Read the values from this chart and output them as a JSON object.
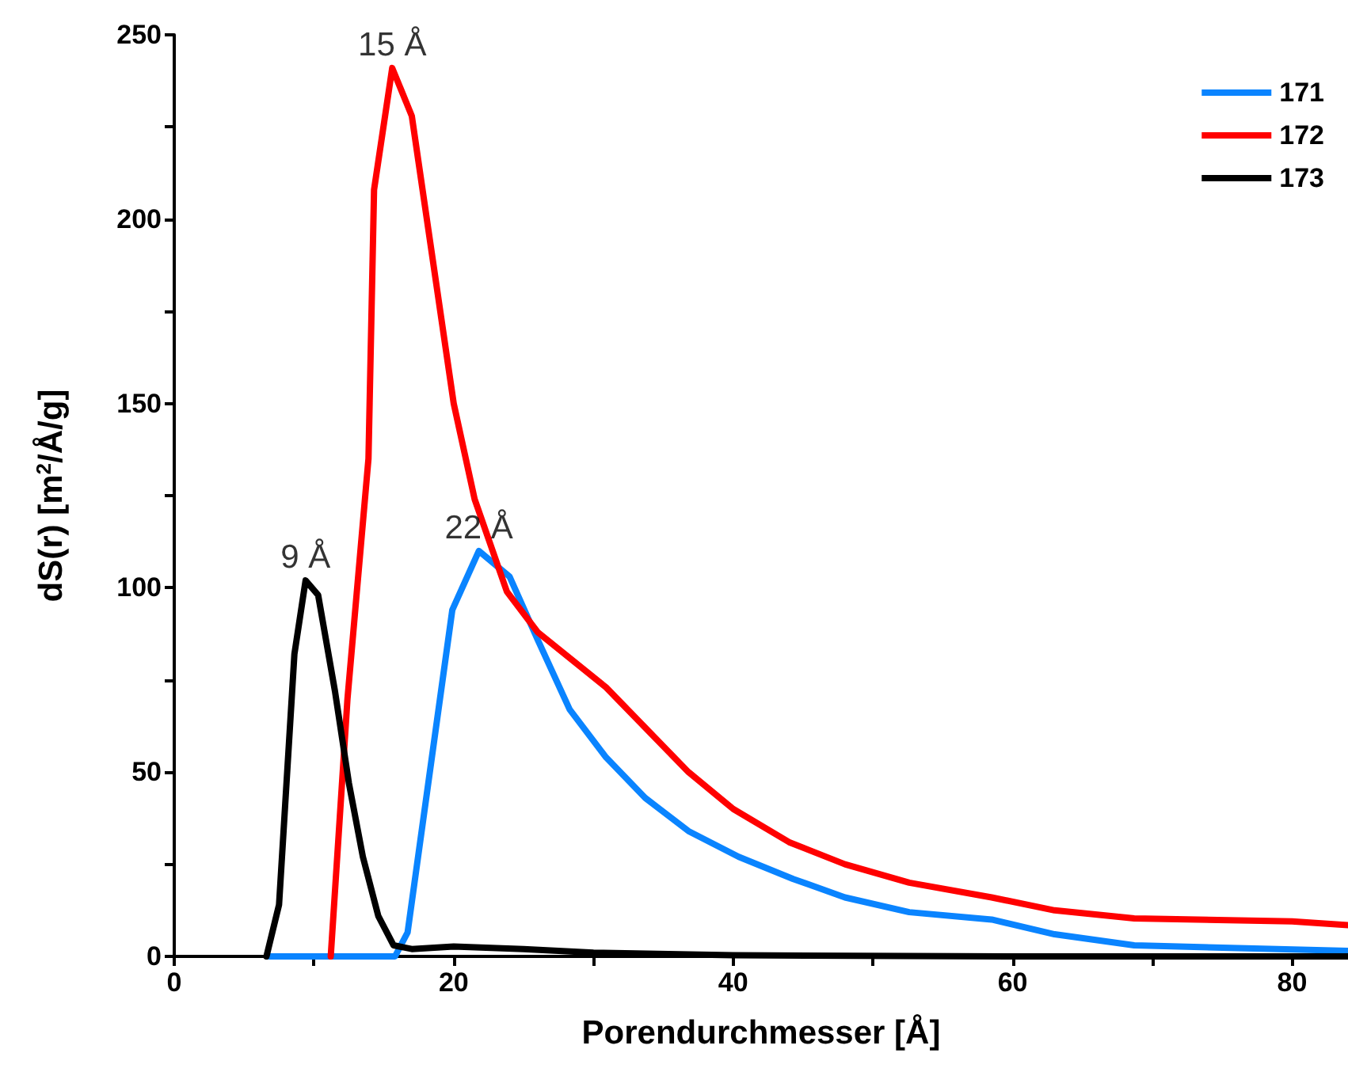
{
  "chart_data": {
    "type": "line",
    "xlabel": "Porendurchmesser [Å]",
    "ylabel": "dS(r) [m$^{2}$/Å/g]",
    "xlim": [
      0,
      84
    ],
    "xticks": [
      0,
      {
        "value": 10,
        "label": null
      },
      20,
      {
        "value": 30,
        "label": null
      },
      40,
      {
        "value": 50,
        "label": null
      },
      60,
      {
        "value": 70,
        "label": null
      },
      80
    ],
    "ylim": [
      0,
      250
    ],
    "yticks": [
      0,
      {
        "value": 25,
        "label": null
      },
      50,
      {
        "value": 75,
        "label": null
      },
      100,
      {
        "value": 125,
        "label": null
      },
      150,
      {
        "value": 175,
        "label": null
      },
      200,
      {
        "value": 225,
        "label": null
      },
      250
    ],
    "grid": false,
    "legend": "top right",
    "marker": "none",
    "line_style": "solid",
    "series": [
      {
        "name": "171",
        "color": "#0a84ff",
        "x": [
          6.8,
          15.8,
          16.7,
          19.9,
          21.8,
          24,
          26,
          28.3,
          30.9,
          33.7,
          36.8,
          40.4,
          44.3,
          48,
          52.6,
          58.5,
          63,
          68.7,
          84
        ],
        "values": [
          0,
          0,
          6.5,
          94,
          110,
          103,
          86,
          67,
          54,
          43,
          34,
          27,
          21,
          16,
          12,
          10,
          6,
          3,
          1.5
        ]
      },
      {
        "name": "172",
        "color": "#ff0000",
        "x": [
          11.2,
          12.4,
          13.9,
          14.3,
          15.6,
          17,
          20,
          21.5,
          23.8,
          26,
          30.9,
          36.8,
          40,
          44,
          48,
          52.6,
          58.5,
          63,
          68.7,
          80,
          84
        ],
        "values": [
          0,
          70,
          135,
          208,
          241,
          228,
          150,
          124,
          99,
          88,
          73,
          50,
          40,
          31,
          25,
          20,
          16,
          12.5,
          10.3,
          9.5,
          8.5
        ]
      },
      {
        "name": "173",
        "color": "#000000",
        "x": [
          6.6,
          7.5,
          8.6,
          9.4,
          10.3,
          11.5,
          12.5,
          13.5,
          14.6,
          15.7,
          17,
          20,
          25,
          30,
          40,
          60,
          84
        ],
        "values": [
          0,
          14,
          82,
          102,
          98,
          72,
          47,
          27,
          11,
          3,
          2,
          2.7,
          2,
          1,
          0.3,
          0,
          0
        ]
      }
    ],
    "annotations": [
      {
        "text": "15 Å",
        "x": 15.6,
        "y": 241
      },
      {
        "text": "9 Å",
        "x": 9.4,
        "y": 102
      },
      {
        "text": "22 Å",
        "x": 21.8,
        "y": 110
      }
    ]
  }
}
